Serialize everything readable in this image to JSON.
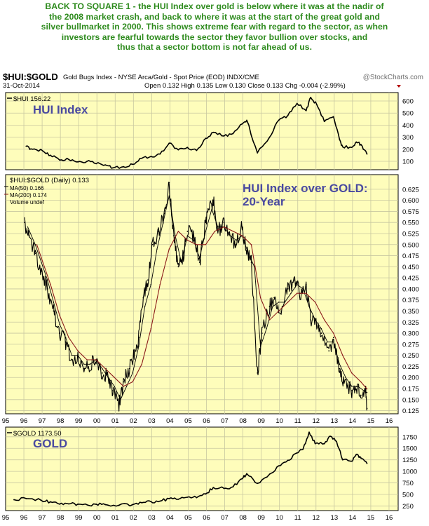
{
  "headline_lines": [
    "BACK TO SQUARE 1 - the HUI Index over gold is below where it was at the nadir of",
    "the 2008 market crash, and back to where it was at the start of the great gold and",
    "silver bullmarket in 2000. This shows extreme fear with regard to the sector, as when",
    "investors are fearful towards the sector they favor bullion over stocks, and",
    "thus that a sector bottom is not far ahead of us."
  ],
  "header": {
    "symbol": "$HUI:$GOLD",
    "description": "Gold Bugs Index - NYSE Arca/Gold - Spot Price (EOD) INDX/CME",
    "watermark": "@StockCharts.com",
    "date": "31-Oct-2014",
    "quote": "Open 0.132  High 0.135  Low 0.130  Close 0.133  Chg -0.004 (-2.99%)"
  },
  "colors": {
    "panel_bg": "#fefdbb",
    "price_line": "#000000",
    "ma50": "#000000",
    "ma200": "#8b1a1a",
    "title_text": "#4a4aa0",
    "headline": "#2e8b1e"
  },
  "chart_data": [
    {
      "type": "line",
      "panel": "top",
      "legend": "$HUI 156.22",
      "title": "HUI Index",
      "x": [
        "1996-02",
        "1996-06",
        "1997-01",
        "1997-06",
        "1997-12",
        "1998-06",
        "1998-12",
        "1999-06",
        "1999-12",
        "2000-06",
        "2000-11",
        "2001-06",
        "2001-12",
        "2002-06",
        "2002-12",
        "2003-06",
        "2003-12",
        "2004-06",
        "2004-12",
        "2005-06",
        "2005-12",
        "2006-05",
        "2006-12",
        "2007-06",
        "2007-12",
        "2008-03",
        "2008-10",
        "2009-06",
        "2009-12",
        "2010-06",
        "2010-12",
        "2011-06",
        "2011-09",
        "2012-01",
        "2012-06",
        "2012-12",
        "2013-04",
        "2013-06",
        "2013-12",
        "2014-03",
        "2014-06",
        "2014-10"
      ],
      "y": [
        225,
        200,
        185,
        150,
        110,
        115,
        95,
        100,
        80,
        70,
        45,
        55,
        75,
        125,
        140,
        160,
        250,
        195,
        215,
        190,
        290,
        340,
        310,
        330,
        410,
        440,
        170,
        300,
        440,
        480,
        580,
        520,
        630,
        570,
        430,
        470,
        280,
        220,
        215,
        260,
        240,
        160
      ],
      "y_ticks": [
        100,
        200,
        300,
        400,
        500,
        600
      ],
      "ylim": [
        30,
        670
      ]
    },
    {
      "type": "line",
      "panel": "middle",
      "title": "HUI Index over GOLD: 20-Year",
      "legend": [
        "$HUI:$GOLD (Daily) 0.133",
        "MA(50) 0.166",
        "MA(200) 0.174",
        "Volume undef"
      ],
      "series": [
        {
          "name": "$HUI:$GOLD (Daily) 0.133",
          "x": [
            "1996-01",
            "1996-04",
            "1996-08",
            "1996-12",
            "1997-04",
            "1997-08",
            "1997-12",
            "1998-04",
            "1998-08",
            "1998-12",
            "1999-04",
            "1999-08",
            "1999-12",
            "2000-04",
            "2000-08",
            "2000-11",
            "2001-03",
            "2001-06",
            "2001-10",
            "2002-01",
            "2002-04",
            "2002-07",
            "2002-10",
            "2003-01",
            "2003-05",
            "2003-09",
            "2003-12",
            "2004-03",
            "2004-06",
            "2004-09",
            "2004-12",
            "2005-04",
            "2005-08",
            "2005-12",
            "2006-02",
            "2006-05",
            "2006-08",
            "2006-12",
            "2007-04",
            "2007-08",
            "2007-12",
            "2008-03",
            "2008-06",
            "2008-10",
            "2009-01",
            "2009-06",
            "2009-09",
            "2010-01",
            "2010-06",
            "2010-10",
            "2011-02",
            "2011-06",
            "2011-09",
            "2011-12",
            "2012-04",
            "2012-09",
            "2012-12",
            "2013-04",
            "2013-07",
            "2013-12",
            "2014-03",
            "2014-06",
            "2014-09",
            "2014-10"
          ],
          "y": [
            0.55,
            0.52,
            0.48,
            0.44,
            0.4,
            0.35,
            0.3,
            0.28,
            0.24,
            0.25,
            0.22,
            0.23,
            0.24,
            0.21,
            0.2,
            0.17,
            0.14,
            0.19,
            0.22,
            0.25,
            0.29,
            0.38,
            0.42,
            0.5,
            0.53,
            0.57,
            0.64,
            0.52,
            0.45,
            0.47,
            0.53,
            0.52,
            0.46,
            0.55,
            0.58,
            0.6,
            0.53,
            0.55,
            0.52,
            0.5,
            0.54,
            0.48,
            0.46,
            0.21,
            0.3,
            0.36,
            0.38,
            0.35,
            0.4,
            0.42,
            0.39,
            0.41,
            0.33,
            0.33,
            0.3,
            0.26,
            0.29,
            0.22,
            0.19,
            0.17,
            0.18,
            0.16,
            0.18,
            0.13
          ]
        },
        {
          "name": "MA(50) 0.166",
          "x": [
            "1996-03",
            "1996-08",
            "1996-12",
            "1997-04",
            "1997-08",
            "1997-12",
            "1998-04",
            "1998-08",
            "1998-12",
            "1999-04",
            "1999-08",
            "1999-12",
            "2000-04",
            "2000-08",
            "2000-12",
            "2001-04",
            "2001-08",
            "2001-12",
            "2002-04",
            "2002-08",
            "2002-12",
            "2003-04",
            "2003-08",
            "2003-12",
            "2004-04",
            "2004-08",
            "2004-12",
            "2005-04",
            "2005-08",
            "2005-12",
            "2006-04",
            "2006-08",
            "2006-12",
            "2007-04",
            "2007-08",
            "2007-12",
            "2008-04",
            "2008-08",
            "2008-12",
            "2009-04",
            "2009-08",
            "2009-12",
            "2010-04",
            "2010-08",
            "2010-12",
            "2011-04",
            "2011-08",
            "2011-12",
            "2012-04",
            "2012-08",
            "2012-12",
            "2013-04",
            "2013-08",
            "2013-12",
            "2014-04",
            "2014-08",
            "2014-10"
          ],
          "y": [
            0.54,
            0.5,
            0.46,
            0.42,
            0.37,
            0.32,
            0.29,
            0.25,
            0.25,
            0.23,
            0.23,
            0.24,
            0.22,
            0.2,
            0.18,
            0.15,
            0.18,
            0.21,
            0.27,
            0.36,
            0.41,
            0.49,
            0.55,
            0.61,
            0.52,
            0.46,
            0.52,
            0.51,
            0.47,
            0.53,
            0.58,
            0.54,
            0.54,
            0.52,
            0.51,
            0.52,
            0.48,
            0.45,
            0.27,
            0.31,
            0.36,
            0.37,
            0.37,
            0.39,
            0.41,
            0.4,
            0.36,
            0.33,
            0.31,
            0.28,
            0.28,
            0.23,
            0.2,
            0.18,
            0.18,
            0.17,
            0.166
          ]
        },
        {
          "name": "MA(200) 0.174",
          "x": [
            "1996-09",
            "1996-12",
            "1997-06",
            "1997-12",
            "1998-06",
            "1998-12",
            "1999-06",
            "1999-12",
            "2000-06",
            "2000-12",
            "2001-06",
            "2001-12",
            "2002-06",
            "2002-12",
            "2003-06",
            "2003-12",
            "2004-06",
            "2004-12",
            "2005-06",
            "2005-12",
            "2006-06",
            "2006-12",
            "2007-06",
            "2007-12",
            "2008-06",
            "2008-12",
            "2009-06",
            "2009-12",
            "2010-06",
            "2010-12",
            "2011-06",
            "2011-12",
            "2012-06",
            "2012-12",
            "2013-06",
            "2013-12",
            "2014-06",
            "2014-10"
          ],
          "y": [
            0.5,
            0.47,
            0.41,
            0.34,
            0.29,
            0.26,
            0.24,
            0.24,
            0.22,
            0.2,
            0.18,
            0.19,
            0.23,
            0.31,
            0.41,
            0.49,
            0.53,
            0.51,
            0.5,
            0.5,
            0.53,
            0.54,
            0.53,
            0.52,
            0.5,
            0.38,
            0.33,
            0.35,
            0.37,
            0.39,
            0.39,
            0.37,
            0.33,
            0.3,
            0.25,
            0.21,
            0.19,
            0.174
          ]
        }
      ],
      "y_ticks": [
        0.125,
        0.15,
        0.175,
        0.2,
        0.225,
        0.25,
        0.275,
        0.3,
        0.325,
        0.35,
        0.375,
        0.4,
        0.425,
        0.45,
        0.475,
        0.5,
        0.525,
        0.55,
        0.575,
        0.6,
        0.625
      ],
      "ylim": [
        0.118,
        0.658
      ]
    },
    {
      "type": "line",
      "panel": "bottom",
      "legend": "$GOLD 1173.50",
      "title": "GOLD",
      "x": [
        "1995-06",
        "1996-02",
        "1996-12",
        "1997-06",
        "1997-12",
        "1998-06",
        "1998-12",
        "1999-08",
        "1999-12",
        "2000-06",
        "2001-03",
        "2001-12",
        "2002-06",
        "2002-12",
        "2003-06",
        "2003-12",
        "2004-06",
        "2004-12",
        "2005-06",
        "2005-12",
        "2006-05",
        "2006-12",
        "2007-06",
        "2007-12",
        "2008-03",
        "2008-10",
        "2009-06",
        "2009-12",
        "2010-06",
        "2010-12",
        "2011-04",
        "2011-08",
        "2011-12",
        "2012-06",
        "2012-10",
        "2013-02",
        "2013-06",
        "2013-12",
        "2014-03",
        "2014-06",
        "2014-10"
      ],
      "y": [
        385,
        410,
        370,
        340,
        290,
        295,
        290,
        255,
        290,
        280,
        265,
        280,
        320,
        345,
        355,
        410,
        395,
        440,
        430,
        510,
        650,
        630,
        665,
        840,
        950,
        740,
        940,
        1120,
        1240,
        1400,
        1480,
        1850,
        1600,
        1600,
        1760,
        1650,
        1250,
        1220,
        1370,
        1290,
        1173
      ],
      "y_ticks": [
        250,
        500,
        750,
        1000,
        1250,
        1500,
        1750
      ],
      "ylim": [
        150,
        1960
      ]
    }
  ],
  "x_axis": {
    "labels": [
      "95",
      "96",
      "97",
      "98",
      "99",
      "00",
      "01",
      "02",
      "03",
      "04",
      "05",
      "06",
      "07",
      "08",
      "09",
      "10",
      "11",
      "12",
      "13",
      "14",
      "15",
      "16"
    ],
    "years": [
      1995,
      1996,
      1997,
      1998,
      1999,
      2000,
      2001,
      2002,
      2003,
      2004,
      2005,
      2006,
      2007,
      2008,
      2009,
      2010,
      2011,
      2012,
      2013,
      2014,
      2015,
      2016
    ]
  }
}
